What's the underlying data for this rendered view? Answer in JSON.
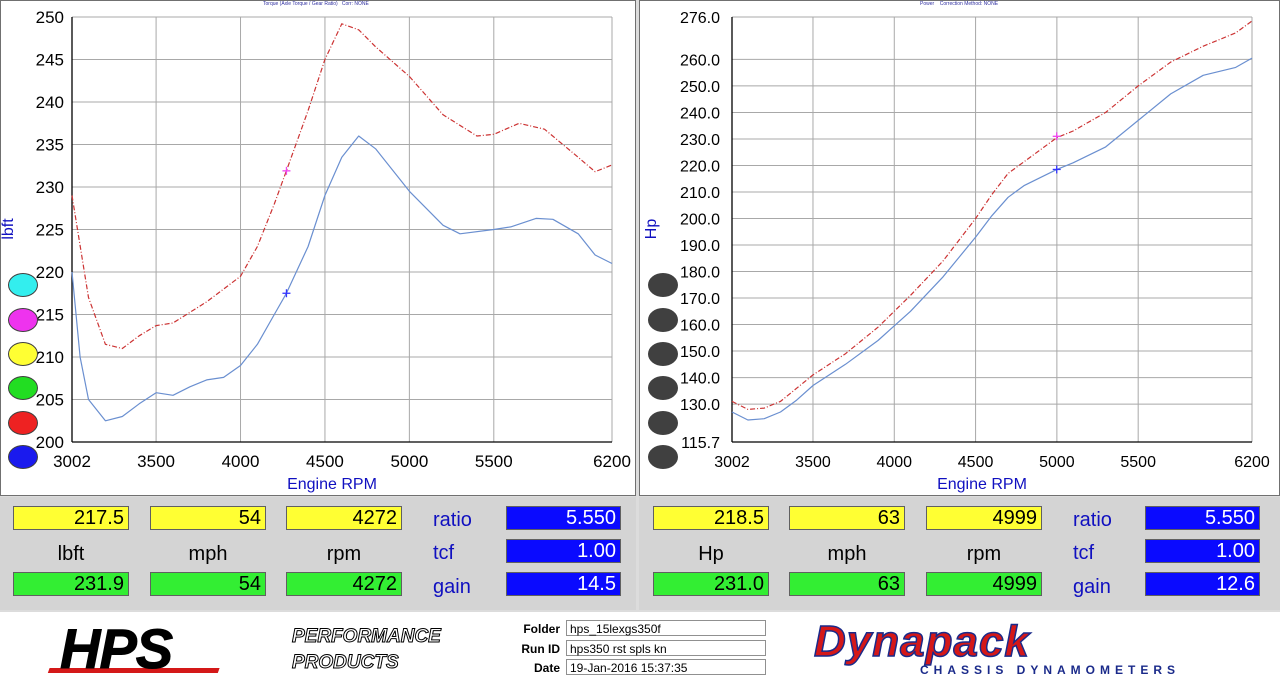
{
  "left_header": {
    "line1": "Torque (Axle Torque / Gear Ratio)",
    "line2": "Corr: NONE"
  },
  "right_header": {
    "line1": "Power",
    "line2": "Correction Method: NONE"
  },
  "chart_data": [
    {
      "type": "line",
      "title": "",
      "xlabel": "Engine RPM",
      "ylabel": "lbft",
      "xlim": [
        3002,
        6200
      ],
      "ylim": [
        200,
        250
      ],
      "x_ticks": [
        3002,
        3500,
        4000,
        4500,
        5000,
        5500,
        6200
      ],
      "y_ticks": [
        200,
        205,
        210,
        215,
        220,
        225,
        230,
        235,
        240,
        245,
        250
      ],
      "grid": true,
      "series": [
        {
          "color": "#cc3333",
          "style": "dash-dot",
          "points": [
            [
              3002,
              229
            ],
            [
              3100,
              217
            ],
            [
              3200,
              211.5
            ],
            [
              3300,
              211
            ],
            [
              3400,
              212.5
            ],
            [
              3500,
              213.7
            ],
            [
              3600,
              214
            ],
            [
              3800,
              216.5
            ],
            [
              4000,
              219.5
            ],
            [
              4100,
              223
            ],
            [
              4200,
              228
            ],
            [
              4272,
              231.9
            ],
            [
              4400,
              239
            ],
            [
              4500,
              245
            ],
            [
              4600,
              249.2
            ],
            [
              4700,
              248.5
            ],
            [
              4800,
              246.5
            ],
            [
              5000,
              243
            ],
            [
              5200,
              238.5
            ],
            [
              5400,
              236
            ],
            [
              5500,
              236.2
            ],
            [
              5650,
              237.5
            ],
            [
              5800,
              236.8
            ],
            [
              6000,
              233.5
            ],
            [
              6100,
              231.8
            ],
            [
              6200,
              232.6
            ]
          ]
        },
        {
          "color": "#6a8fd0",
          "style": "solid",
          "points": [
            [
              3002,
              220
            ],
            [
              3050,
              210
            ],
            [
              3100,
              205
            ],
            [
              3200,
              202.5
            ],
            [
              3300,
              203
            ],
            [
              3400,
              204.5
            ],
            [
              3500,
              205.8
            ],
            [
              3600,
              205.5
            ],
            [
              3700,
              206.5
            ],
            [
              3800,
              207.3
            ],
            [
              3900,
              207.6
            ],
            [
              4000,
              209
            ],
            [
              4100,
              211.5
            ],
            [
              4200,
              215
            ],
            [
              4272,
              217.5
            ],
            [
              4400,
              223
            ],
            [
              4500,
              229
            ],
            [
              4600,
              233.5
            ],
            [
              4700,
              236
            ],
            [
              4800,
              234.5
            ],
            [
              5000,
              229.5
            ],
            [
              5200,
              225.5
            ],
            [
              5300,
              224.5
            ],
            [
              5500,
              225
            ],
            [
              5600,
              225.3
            ],
            [
              5750,
              226.3
            ],
            [
              5850,
              226.2
            ],
            [
              6000,
              224.5
            ],
            [
              6100,
              222
            ],
            [
              6200,
              221
            ]
          ]
        }
      ],
      "markers": [
        {
          "x": 4272,
          "y": 231.9,
          "color": "#ee44ee"
        },
        {
          "x": 4272,
          "y": 217.5,
          "color": "#3333ff"
        }
      ]
    },
    {
      "type": "line",
      "title": "",
      "xlabel": "Engine RPM",
      "ylabel": "Hp",
      "xlim": [
        3002,
        6200
      ],
      "ylim": [
        115.7,
        276.0
      ],
      "x_ticks": [
        3002,
        3500,
        4000,
        4500,
        5000,
        5500,
        6200
      ],
      "y_ticks": [
        115.7,
        130.0,
        140.0,
        150.0,
        160.0,
        170.0,
        180.0,
        190.0,
        200.0,
        210.0,
        220.0,
        230.0,
        240.0,
        250.0,
        260.0,
        276.0
      ],
      "grid": true,
      "series": [
        {
          "color": "#cc3333",
          "style": "dash-dot",
          "points": [
            [
              3002,
              131
            ],
            [
              3100,
              128
            ],
            [
              3200,
              128.5
            ],
            [
              3300,
              131
            ],
            [
              3400,
              136
            ],
            [
              3500,
              141
            ],
            [
              3700,
              149
            ],
            [
              3900,
              159
            ],
            [
              4100,
              171
            ],
            [
              4300,
              184
            ],
            [
              4500,
              200
            ],
            [
              4600,
              209
            ],
            [
              4700,
              217
            ],
            [
              4800,
              221.5
            ],
            [
              4900,
              226
            ],
            [
              5000,
              230.5
            ],
            [
              5100,
              233
            ],
            [
              5300,
              240
            ],
            [
              5500,
              250
            ],
            [
              5700,
              259
            ],
            [
              5900,
              265
            ],
            [
              6100,
              270
            ],
            [
              6200,
              274.5
            ]
          ]
        },
        {
          "color": "#6a8fd0",
          "style": "solid",
          "points": [
            [
              3002,
              127
            ],
            [
              3100,
              124
            ],
            [
              3200,
              124.5
            ],
            [
              3300,
              127
            ],
            [
              3400,
              131.5
            ],
            [
              3500,
              137
            ],
            [
              3700,
              145
            ],
            [
              3900,
              154
            ],
            [
              4100,
              165
            ],
            [
              4300,
              178
            ],
            [
              4500,
              193
            ],
            [
              4600,
              201
            ],
            [
              4700,
              208
            ],
            [
              4800,
              212.5
            ],
            [
              4900,
              215.5
            ],
            [
              5000,
              218.5
            ],
            [
              5100,
              221
            ],
            [
              5300,
              227
            ],
            [
              5500,
              237
            ],
            [
              5700,
              247
            ],
            [
              5900,
              254
            ],
            [
              6100,
              257
            ],
            [
              6200,
              260.5
            ]
          ]
        }
      ],
      "markers": [
        {
          "x": 4999,
          "y": 231.0,
          "color": "#ee44ee"
        },
        {
          "x": 4999,
          "y": 218.5,
          "color": "#3333ff"
        }
      ]
    }
  ],
  "left_readout": {
    "row1": [
      "217.5",
      "54",
      "4272"
    ],
    "labels": [
      "lbft",
      "mph",
      "rpm"
    ],
    "row2": [
      "231.9",
      "54",
      "4272"
    ],
    "right_labels": [
      "ratio",
      "tcf",
      "gain"
    ],
    "right_values": [
      "5.550",
      "1.00",
      "14.5"
    ]
  },
  "right_readout": {
    "row1": [
      "218.5",
      "63",
      "4999"
    ],
    "labels": [
      "Hp",
      "mph",
      "rpm"
    ],
    "row2": [
      "231.0",
      "63",
      "4999"
    ],
    "right_labels": [
      "ratio",
      "tcf",
      "gain"
    ],
    "right_values": [
      "5.550",
      "1.00",
      "12.6"
    ]
  },
  "left_dots": [
    "#33eeee",
    "#ee33ee",
    "#ffff33",
    "#22dd22",
    "#ee2222",
    "#1a1aee"
  ],
  "right_dots": [
    "#404040",
    "#404040",
    "#404040",
    "#404040",
    "#404040",
    "#404040"
  ],
  "footer": {
    "hps_logo": "HPS",
    "hps_tag1": "PERFORMANCE",
    "hps_tag2": "PRODUCTS",
    "folder_label": "Folder",
    "folder_value": "hps_15lexgs350f",
    "runid_label": "Run ID",
    "runid_value": "hps350 rst spls kn",
    "date_label": "Date",
    "date_value": "19-Jan-2016  15:37:35",
    "dynapack_logo": "Dynapack",
    "dynapack_tag": "CHASSIS  DYNAMOMETERS"
  }
}
